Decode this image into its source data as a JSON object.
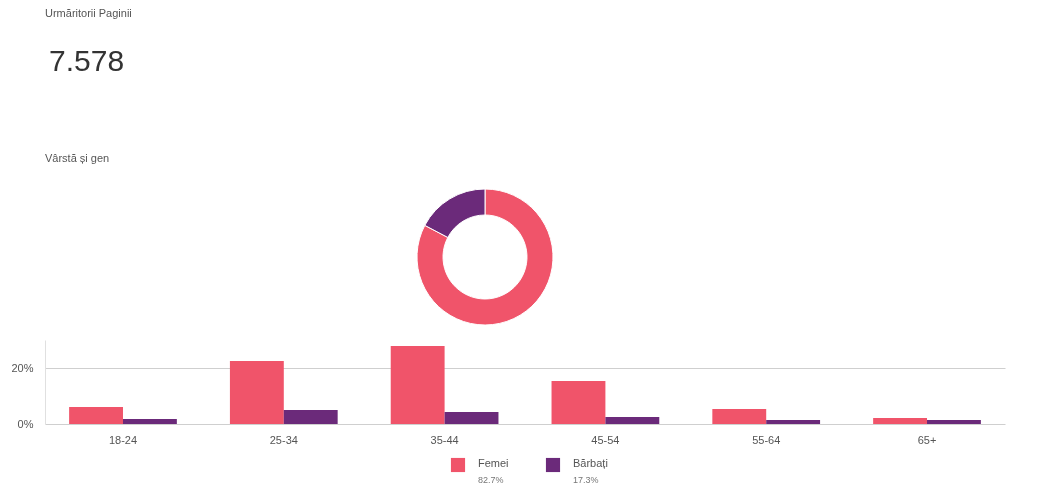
{
  "chart_data": [
    {
      "type": "other",
      "title": "Urmăritorii Paginii",
      "annotations": [
        "7.578",
        "Vârstă și gen"
      ]
    },
    {
      "type": "donut",
      "categories": [
        "Femei",
        "Bărbați"
      ],
      "values": [
        82.7,
        17.3
      ],
      "colors": [
        "#f0546a",
        "#6b2a7a"
      ],
      "value_labels": [
        "82.7%",
        "17.3%"
      ],
      "legend": "bottom"
    },
    {
      "type": "bar",
      "categories": [
        "18-24",
        "25-34",
        "35-44",
        "45-54",
        "55-64",
        "65+"
      ],
      "series": [
        {
          "color": "#f0546a",
          "values": [
            6.1,
            22.5,
            27.9,
            15.4,
            5.4,
            2.1
          ]
        },
        {
          "color": "#6b2a7a",
          "values": [
            1.8,
            5.0,
            4.3,
            2.5,
            1.4,
            1.4
          ]
        }
      ],
      "ylim": [
        0,
        30
      ],
      "yticks": [
        {
          "value": 0,
          "label": "0%"
        },
        {
          "value": 20,
          "label": "20%"
        }
      ],
      "grid": "y"
    }
  ]
}
